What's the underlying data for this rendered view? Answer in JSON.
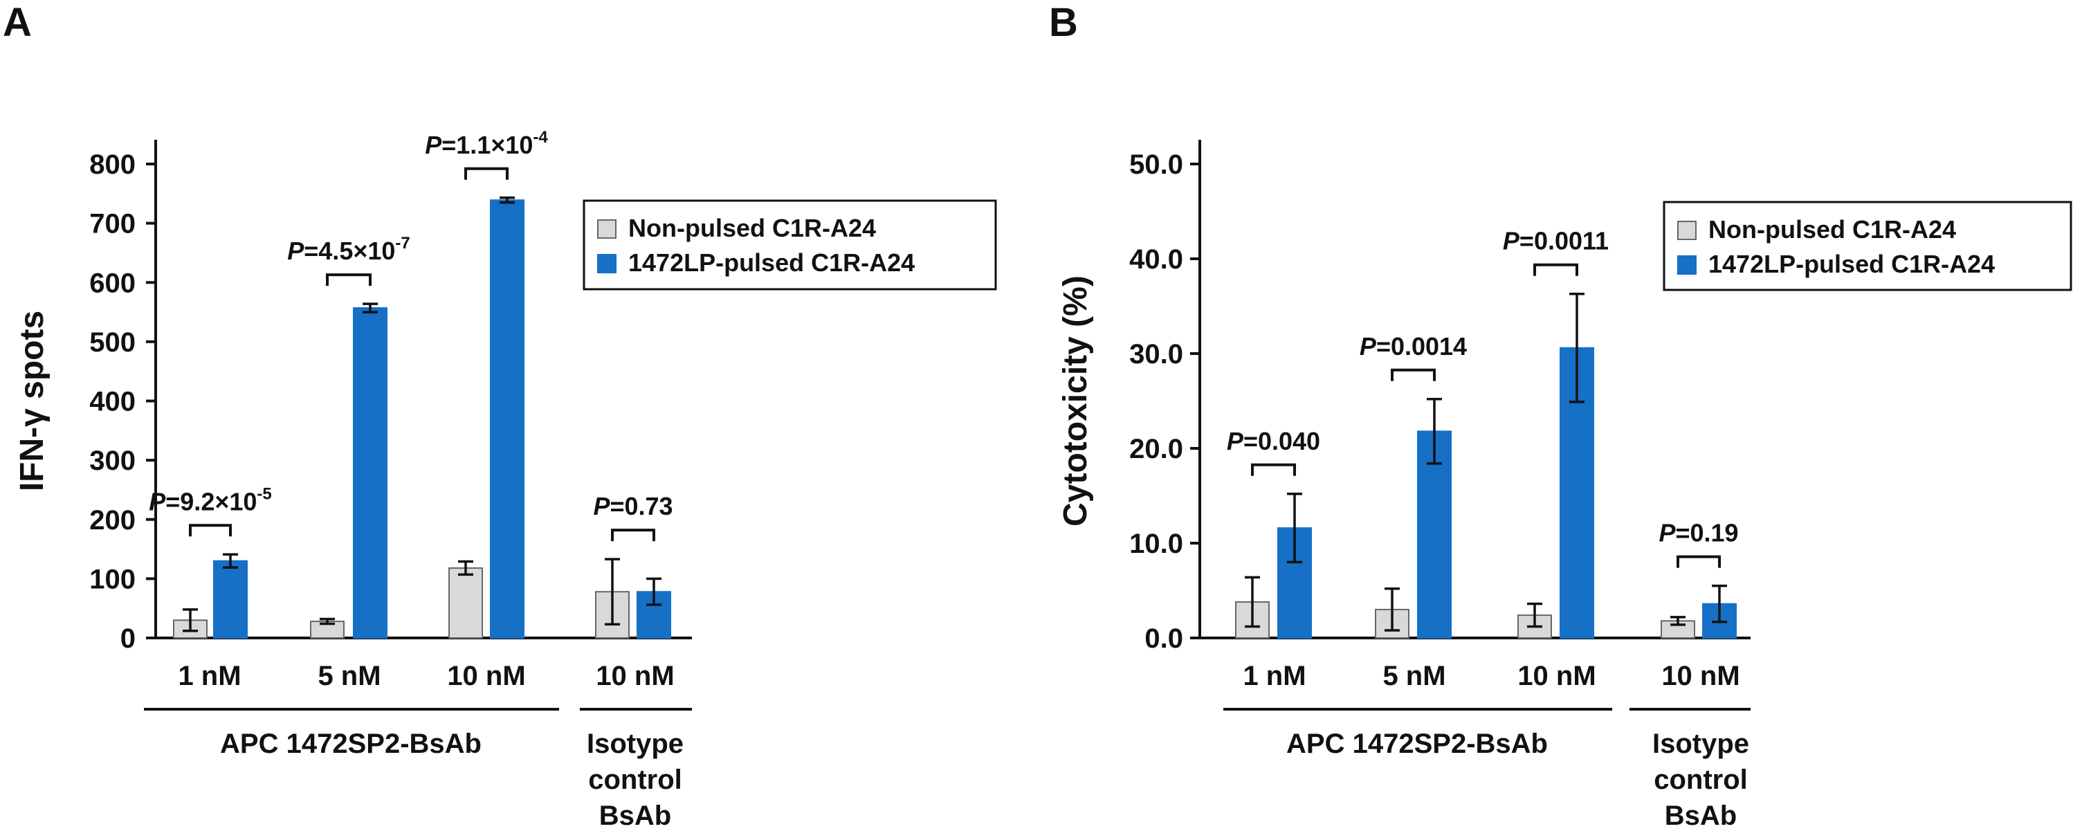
{
  "chart_data": [
    {
      "panel": "A",
      "type": "bar",
      "ylabel": "IFN-γ spots",
      "ylim": [
        0,
        800
      ],
      "yticks": [
        "0",
        "100",
        "200",
        "300",
        "400",
        "500",
        "600",
        "700",
        "800"
      ],
      "ytick_values": [
        0,
        100,
        200,
        300,
        400,
        500,
        600,
        700,
        800
      ],
      "categories": [
        "1 nM",
        "5 nM",
        "10 nM",
        "10 nM"
      ],
      "groups": [
        "APC 1472SP2-BsAb",
        "Isotype control BsAb"
      ],
      "group_label_lines": [
        [
          "APC 1472SP2-BsAb"
        ],
        [
          "Isotype",
          "control",
          "BsAb"
        ]
      ],
      "series": [
        {
          "name": "Non-pulsed C1R-A24",
          "color": "#d9d9d9",
          "stroke": "#666666",
          "values": [
            30,
            28,
            118,
            78
          ],
          "errors": [
            18,
            4,
            11,
            55
          ]
        },
        {
          "name": "1472LP-pulsed C1R-A24",
          "color": "#1670c6",
          "stroke": "#1670c6",
          "values": [
            130,
            557,
            739,
            78
          ],
          "errors": [
            11,
            7,
            4,
            22
          ]
        }
      ],
      "p_values": [
        {
          "prefix": "P",
          "text": "=9.2×10",
          "exp": "-5"
        },
        {
          "prefix": "P",
          "text": "=4.5×10",
          "exp": "-7"
        },
        {
          "prefix": "P",
          "text": "=1.1×10",
          "exp": "-4"
        },
        {
          "prefix": "P",
          "text": "=0.73",
          "exp": ""
        }
      ],
      "legend": [
        "Non-pulsed C1R-A24",
        "1472LP-pulsed C1R-A24"
      ],
      "legend_position": "top-right"
    },
    {
      "panel": "B",
      "type": "bar",
      "ylabel": "Cytotoxicity (%)",
      "ylim": [
        0,
        50
      ],
      "yticks": [
        "0.0",
        "10.0",
        "20.0",
        "30.0",
        "40.0",
        "50.0"
      ],
      "ytick_values": [
        0,
        10,
        20,
        30,
        40,
        50
      ],
      "categories": [
        "1 nM",
        "5 nM",
        "10 nM",
        "10 nM"
      ],
      "groups": [
        "APC 1472SP2-BsAb",
        "Isotype control BsAb"
      ],
      "group_label_lines": [
        [
          "APC 1472SP2-BsAb"
        ],
        [
          "Isotype",
          "control",
          "BsAb"
        ]
      ],
      "series": [
        {
          "name": "Non-pulsed C1R-A24",
          "color": "#d9d9d9",
          "stroke": "#666666",
          "values": [
            3.8,
            3.0,
            2.4,
            1.8
          ],
          "errors": [
            2.6,
            2.2,
            1.2,
            0.4
          ]
        },
        {
          "name": "1472LP-pulsed C1R-A24",
          "color": "#1670c6",
          "stroke": "#1670c6",
          "values": [
            11.6,
            21.8,
            30.6,
            3.6
          ],
          "errors": [
            3.6,
            3.4,
            5.7,
            1.9
          ]
        }
      ],
      "p_values": [
        {
          "prefix": "P",
          "text": "=0.040",
          "exp": ""
        },
        {
          "prefix": "P",
          "text": "=0.0014",
          "exp": ""
        },
        {
          "prefix": "P",
          "text": "=0.0011",
          "exp": ""
        },
        {
          "prefix": "P",
          "text": "=0.19",
          "exp": ""
        }
      ],
      "legend": [
        "Non-pulsed C1R-A24",
        "1472LP-pulsed C1R-A24"
      ],
      "legend_position": "top-right"
    }
  ]
}
